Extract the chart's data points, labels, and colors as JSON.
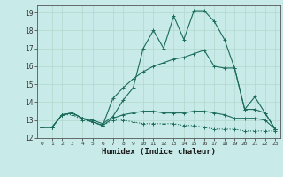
{
  "xlabel": "Humidex (Indice chaleur)",
  "background_color": "#c8eae8",
  "grid_color": "#b0d8cc",
  "line_color": "#1a6b5a",
  "xlim": [
    -0.5,
    23.5
  ],
  "ylim": [
    12,
    19.4
  ],
  "xticks": [
    0,
    1,
    2,
    3,
    4,
    5,
    6,
    7,
    8,
    9,
    10,
    11,
    12,
    13,
    14,
    15,
    16,
    17,
    18,
    19,
    20,
    21,
    22,
    23
  ],
  "yticks": [
    12,
    13,
    14,
    15,
    16,
    17,
    18,
    19
  ],
  "line1_x": [
    0,
    1,
    2,
    3,
    4,
    5,
    6,
    7,
    8,
    9,
    10,
    11,
    12,
    13,
    14,
    15,
    16,
    17,
    18,
    19,
    20,
    21,
    22,
    23
  ],
  "line1_y": [
    12.6,
    12.6,
    13.3,
    13.4,
    13.1,
    13.0,
    12.8,
    13.2,
    14.1,
    14.8,
    17.0,
    18.0,
    17.0,
    18.8,
    17.5,
    19.1,
    19.1,
    18.5,
    17.5,
    15.9,
    13.6,
    14.3,
    13.4,
    12.5
  ],
  "line2_x": [
    0,
    1,
    2,
    3,
    4,
    5,
    6,
    7,
    8,
    9,
    10,
    11,
    12,
    13,
    14,
    15,
    16,
    17,
    18,
    19,
    20,
    21,
    22,
    23
  ],
  "line2_y": [
    12.6,
    12.6,
    13.3,
    13.4,
    13.1,
    12.9,
    12.7,
    14.2,
    14.8,
    15.3,
    15.7,
    16.0,
    16.2,
    16.4,
    16.5,
    16.7,
    16.9,
    16.0,
    15.9,
    15.9,
    13.6,
    13.6,
    13.4,
    12.5
  ],
  "line3_x": [
    0,
    1,
    2,
    3,
    4,
    5,
    6,
    7,
    8,
    9,
    10,
    11,
    12,
    13,
    14,
    15,
    16,
    17,
    18,
    19,
    20,
    21,
    22,
    23
  ],
  "line3_y": [
    12.6,
    12.6,
    13.3,
    13.4,
    13.1,
    12.9,
    12.7,
    13.1,
    13.3,
    13.4,
    13.5,
    13.5,
    13.4,
    13.4,
    13.4,
    13.5,
    13.5,
    13.4,
    13.3,
    13.1,
    13.1,
    13.1,
    13.0,
    12.5
  ],
  "line4_x": [
    0,
    1,
    2,
    3,
    4,
    5,
    6,
    7,
    8,
    9,
    10,
    11,
    12,
    13,
    14,
    15,
    16,
    17,
    18,
    19,
    20,
    21,
    22,
    23
  ],
  "line4_y": [
    12.6,
    12.6,
    13.3,
    13.3,
    13.0,
    12.9,
    12.7,
    13.0,
    13.0,
    12.9,
    12.8,
    12.8,
    12.8,
    12.8,
    12.7,
    12.7,
    12.6,
    12.5,
    12.5,
    12.5,
    12.4,
    12.4,
    12.4,
    12.4
  ]
}
